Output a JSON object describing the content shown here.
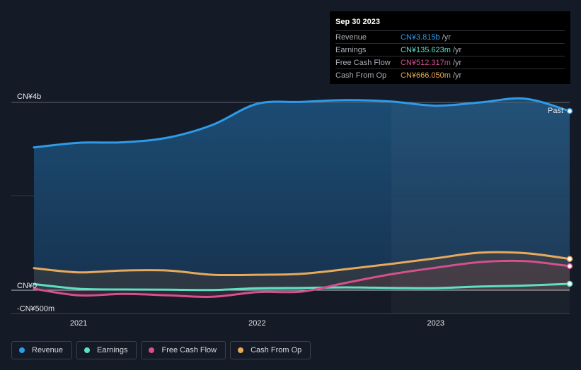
{
  "tooltip": {
    "date": "Sep 30 2023",
    "rows": [
      {
        "label": "Revenue",
        "value": "CN¥3.815b",
        "unit": "/yr",
        "color": "#2e9bea"
      },
      {
        "label": "Earnings",
        "value": "CN¥135.623m",
        "unit": "/yr",
        "color": "#5ee0c7"
      },
      {
        "label": "Free Cash Flow",
        "value": "CN¥512.317m",
        "unit": "/yr",
        "color": "#d6508c"
      },
      {
        "label": "Cash From Op",
        "value": "CN¥666.050m",
        "unit": "/yr",
        "color": "#e8a95c"
      }
    ]
  },
  "past_label": "Past",
  "legend": [
    {
      "label": "Revenue",
      "color": "#2e9bea"
    },
    {
      "label": "Earnings",
      "color": "#5ee0c7"
    },
    {
      "label": "Free Cash Flow",
      "color": "#d6508c"
    },
    {
      "label": "Cash From Op",
      "color": "#e8a95c"
    }
  ],
  "chart_data": {
    "type": "area",
    "x_unit": "year",
    "xlim": [
      2020.75,
      2023.75
    ],
    "ylim": [
      -500,
      4000
    ],
    "y_tick_labels": [
      {
        "value": 4000,
        "label": "CN¥4b"
      },
      {
        "value": 0,
        "label": "CN¥0"
      },
      {
        "value": -500,
        "label": "-CN¥500m"
      }
    ],
    "x_tick_labels": [
      {
        "value": 2021,
        "label": "2021"
      },
      {
        "value": 2022,
        "label": "2022"
      },
      {
        "value": 2023,
        "label": "2023"
      }
    ],
    "x": [
      2020.75,
      2021.0,
      2021.25,
      2021.5,
      2021.75,
      2022.0,
      2022.25,
      2022.5,
      2022.75,
      2023.0,
      2023.25,
      2023.5,
      2023.75
    ],
    "series": [
      {
        "name": "Revenue",
        "color": "#2e9bea",
        "values": [
          3040,
          3140,
          3150,
          3250,
          3520,
          3970,
          4010,
          4050,
          4020,
          3930,
          4000,
          4080,
          3815
        ]
      },
      {
        "name": "Earnings",
        "color": "#5ee0c7",
        "values": [
          130,
          30,
          15,
          10,
          5,
          40,
          50,
          60,
          50,
          45,
          80,
          100,
          135.623
        ]
      },
      {
        "name": "Free Cash Flow",
        "color": "#d6508c",
        "values": [
          30,
          -110,
          -80,
          -110,
          -140,
          -40,
          -30,
          160,
          340,
          480,
          600,
          620,
          512.317
        ]
      },
      {
        "name": "Cash From Op",
        "color": "#e8a95c",
        "values": [
          470,
          380,
          420,
          420,
          330,
          330,
          350,
          450,
          560,
          680,
          800,
          790,
          666.05
        ]
      }
    ]
  }
}
